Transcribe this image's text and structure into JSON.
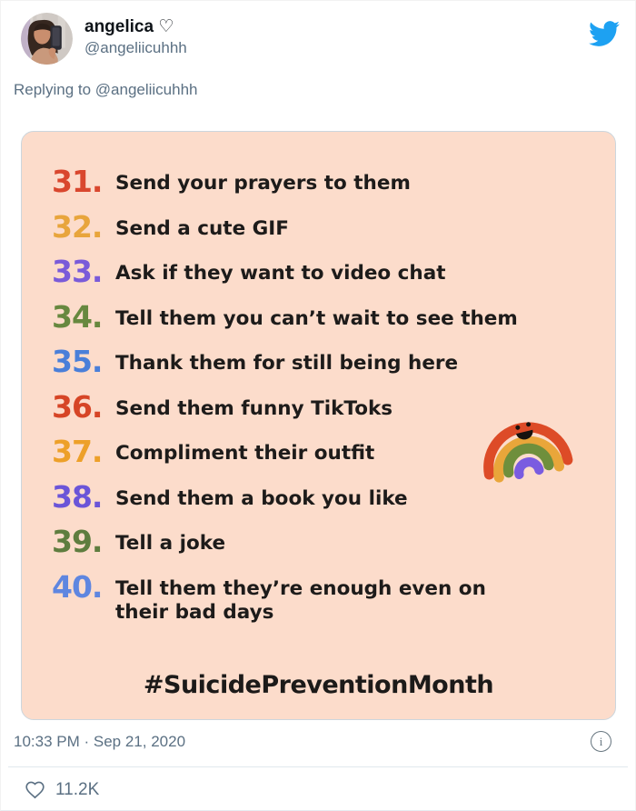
{
  "colors": {
    "brand_blue": "#1da1f2",
    "text_primary": "#0f1419",
    "text_secondary": "#5b7083",
    "card_background": "#fcdccb",
    "card_border": "#ccd6dd",
    "divider": "#e1e8ed"
  },
  "header": {
    "display_name": "angelica ♡",
    "handle": "@angeliicuhhh",
    "replying_to": "Replying to @angeliicuhhh"
  },
  "image_card": {
    "items": [
      {
        "num": "31.",
        "color": "#d9472e",
        "text": "Send your prayers to them"
      },
      {
        "num": "32.",
        "color": "#e8a53c",
        "text": "Send a cute GIF"
      },
      {
        "num": "33.",
        "color": "#7a5bd9",
        "text": "Ask if they want to video chat"
      },
      {
        "num": "34.",
        "color": "#67883f",
        "text": "Tell them you can’t wait to see them"
      },
      {
        "num": "35.",
        "color": "#4a7fd9",
        "text": "Thank them for still being here"
      },
      {
        "num": "36.",
        "color": "#d64526",
        "text": "Send them funny TikToks"
      },
      {
        "num": "37.",
        "color": "#eda029",
        "text": "Compliment their outfit"
      },
      {
        "num": "38.",
        "color": "#6b55d8",
        "text": "Send them a book you like"
      },
      {
        "num": "39.",
        "color": "#5f7d3f",
        "text": "Tell a joke"
      },
      {
        "num": "40.",
        "color": "#5f86e0",
        "text": "Tell them they’re enough even on their bad days"
      }
    ],
    "hashtag": "#SuicidePreventionMonth"
  },
  "footer": {
    "timestamp": "10:33 PM · Sep 21, 2020",
    "info_label": "i",
    "like_count": "11.2K"
  }
}
